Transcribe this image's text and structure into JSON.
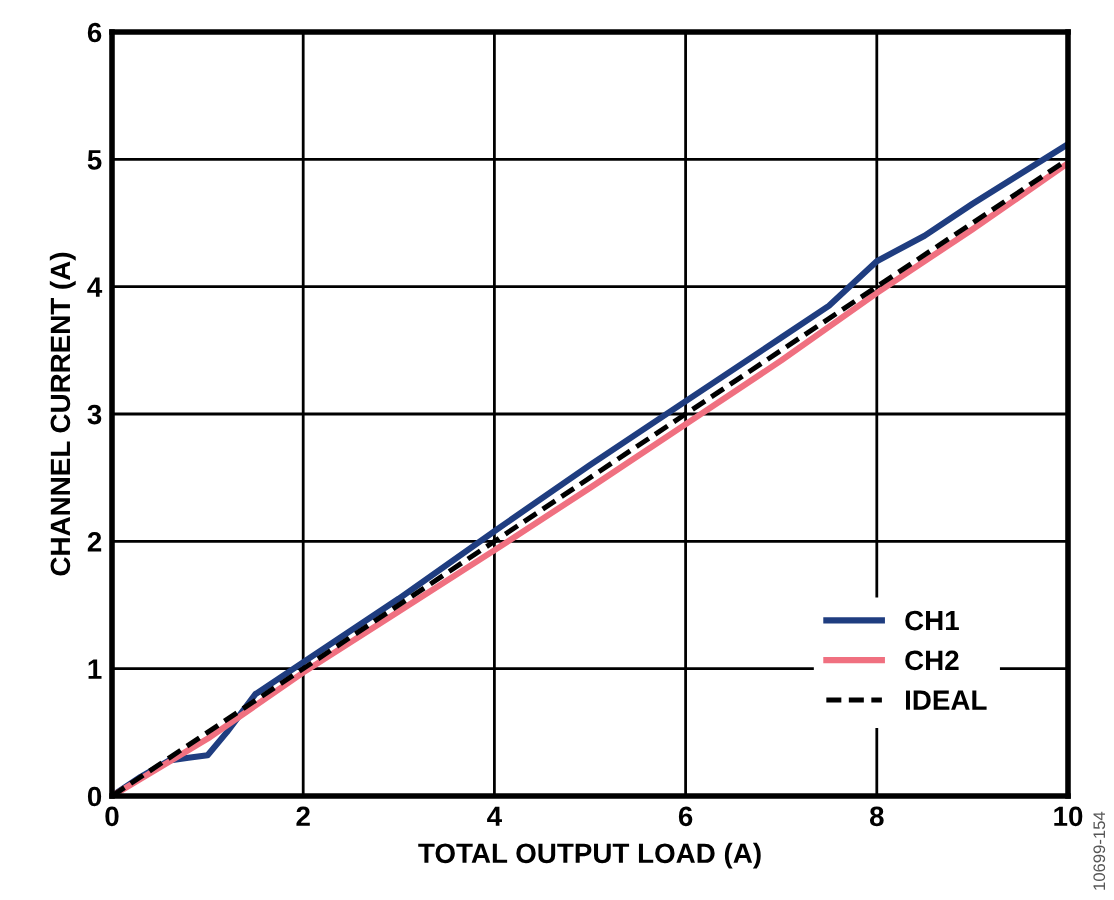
{
  "chart_data": {
    "type": "line",
    "xlabel": "TOTAL OUTPUT LOAD (A)",
    "ylabel": "CHANNEL CURRENT (A)",
    "xlim": [
      0,
      10
    ],
    "ylim": [
      0,
      6
    ],
    "xticks": [
      0,
      2,
      4,
      6,
      8,
      10
    ],
    "yticks": [
      0,
      1,
      2,
      3,
      4,
      5,
      6
    ],
    "grid": true,
    "legend": "bottom right",
    "series": [
      {
        "name": "CH1",
        "color": "#1f3d80",
        "line_style": "solid",
        "x": [
          0,
          0.3,
          0.6,
          0.8,
          1.0,
          1.2,
          1.5,
          2,
          3,
          4,
          5,
          6,
          7,
          7.5,
          8,
          8.5,
          9,
          10
        ],
        "values": [
          0,
          0.15,
          0.28,
          0.3,
          0.32,
          0.5,
          0.8,
          1.05,
          1.55,
          2.08,
          2.6,
          3.1,
          3.6,
          3.85,
          4.2,
          4.4,
          4.65,
          5.12
        ]
      },
      {
        "name": "CH2",
        "color": "#f07080",
        "line_style": "solid",
        "x": [
          0,
          1,
          2,
          3,
          4,
          5,
          6,
          7,
          8,
          9,
          10
        ],
        "values": [
          0,
          0.45,
          0.97,
          1.45,
          1.93,
          2.42,
          2.92,
          3.42,
          3.95,
          4.45,
          4.97
        ]
      },
      {
        "name": "IDEAL",
        "color": "#000000",
        "line_style": "dashed",
        "x": [
          0,
          10
        ],
        "values": [
          0,
          5
        ]
      }
    ],
    "annotations": [
      "10699-154"
    ]
  }
}
